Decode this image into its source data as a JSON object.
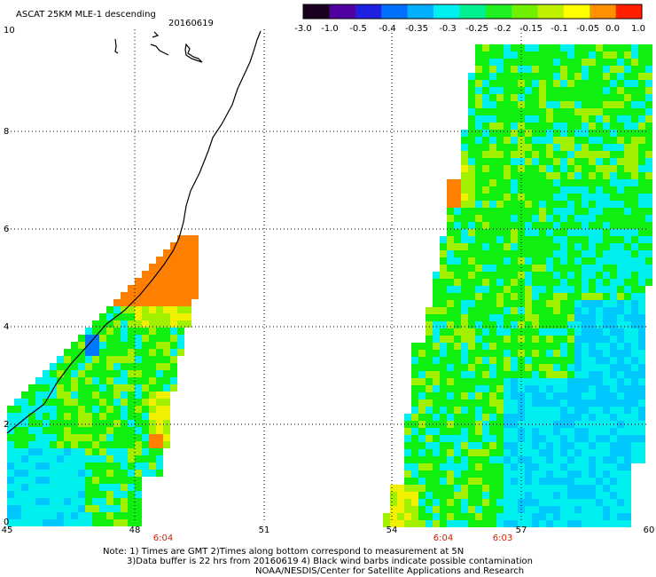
{
  "title": "ASCAT 25KM MLE-1 descending",
  "date": "20160619",
  "colorbar": {
    "ticks": [
      "-3.0",
      "-1.0",
      "-0.5",
      "-0.4",
      "-0.35",
      "-0.3",
      "-0.25",
      "-0.2",
      "-0.15",
      "-0.1",
      "-0.05",
      "0.0",
      "1.0"
    ],
    "colors": [
      "#1a0020",
      "#5000a0",
      "#2020e0",
      "#0070ff",
      "#00b0ff",
      "#00f0f0",
      "#00f090",
      "#20f020",
      "#70f000",
      "#c0f000",
      "#ffff00",
      "#ff9000",
      "#ff2000"
    ]
  },
  "axes": {
    "x_ticks": [
      "45",
      "48",
      "51",
      "54",
      "57",
      "60"
    ],
    "y_ticks": [
      "0",
      "2",
      "4",
      "6",
      "8",
      "10"
    ]
  },
  "pass_times": [
    "6:04",
    "6:04",
    "6:03"
  ],
  "notes": [
    "Note: 1) Times are GMT 2)Times along bottom correspond to measurement at 5N",
    "3)Data buffer is 22 hrs from 20160619 4) Black wind barbs indicate possible contamination",
    "NOAA/NESDIS/Center for Satellite Applications and Research"
  ],
  "legend_colors": {
    "cyan": "#00f0f0",
    "light_blue": "#00c8ff",
    "blue": "#0078ff",
    "green": "#10f010",
    "yellow_green": "#a0f000",
    "yellow": "#f0f000",
    "orange": "#ff8000"
  }
}
